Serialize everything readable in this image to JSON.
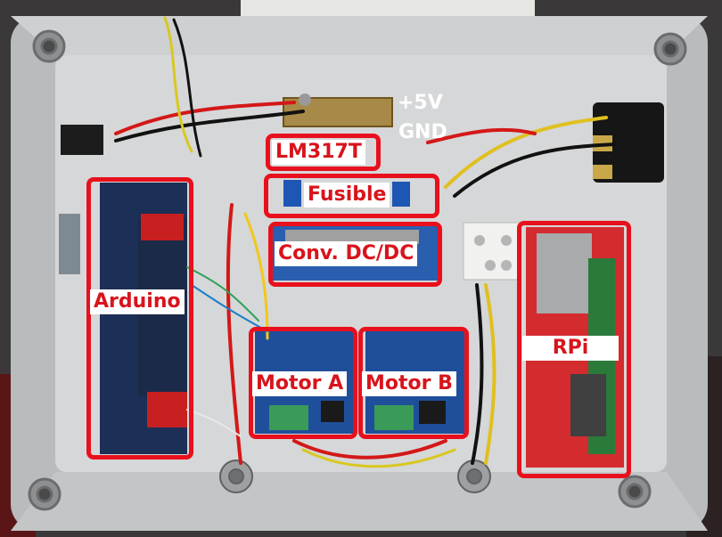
{
  "labels": {
    "v5": "+5V",
    "gnd": "GND",
    "lm317": "LM317T",
    "fuse": "Fusible",
    "conv": "Conv. DC/DC",
    "arduino": "Arduino",
    "motor_a": "Motor A",
    "motor_b": "Motor B",
    "rpi": "RPi"
  },
  "colors": {
    "highlight": "#e8101c",
    "enclosure": "#c9cacb",
    "label_text": "#d8141c",
    "label_bg": "#ffffff"
  }
}
